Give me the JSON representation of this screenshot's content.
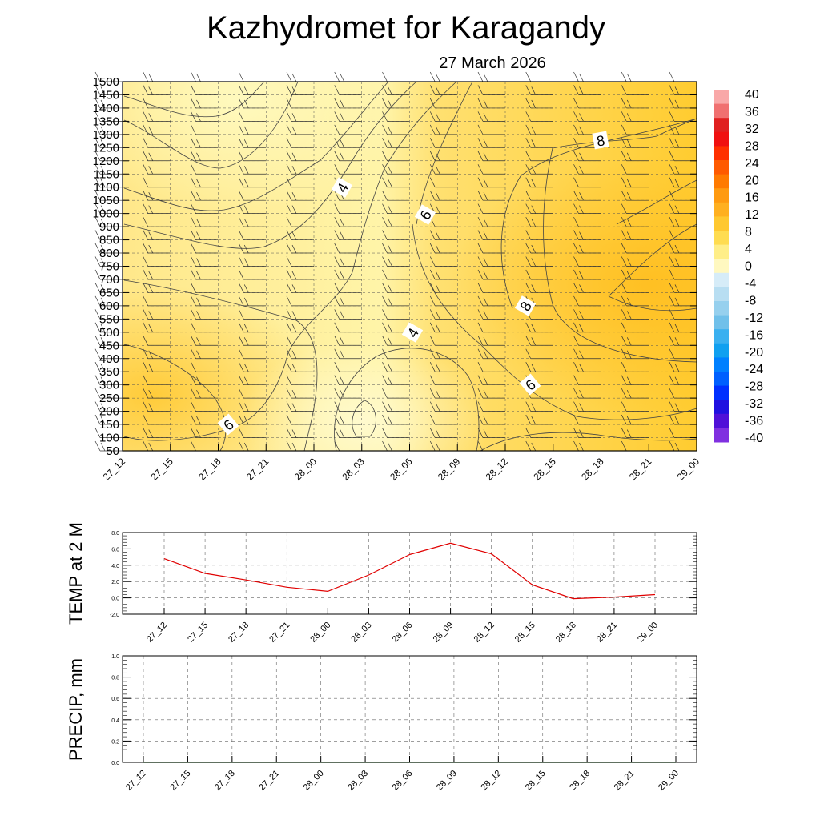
{
  "title": "Kazhydromet  for Karagandy",
  "subtitle": "27 March 2026",
  "time_labels": [
    "27_12",
    "27_15",
    "27_18",
    "27_21",
    "28_00",
    "28_03",
    "28_06",
    "28_09",
    "28_12",
    "28_15",
    "28_18",
    "28_21",
    "29_00"
  ],
  "chart_data": [
    {
      "type": "heatmap",
      "name": "temperature-cross-section",
      "xlabel": "",
      "ylabel": "",
      "x": [
        "27_12",
        "27_15",
        "27_18",
        "27_21",
        "28_00",
        "28_03",
        "28_06",
        "28_09",
        "28_12",
        "28_15",
        "28_18",
        "28_21",
        "29_00"
      ],
      "y_levels": [
        1500,
        1450,
        1400,
        1350,
        1300,
        1250,
        1200,
        1150,
        1100,
        1050,
        1000,
        900,
        850,
        800,
        750,
        700,
        650,
        600,
        550,
        500,
        450,
        400,
        350,
        300,
        250,
        200,
        150,
        100,
        50
      ],
      "contour_labels": [
        {
          "text": "4",
          "time": "28_01",
          "level": 1100
        },
        {
          "text": "6",
          "time": "28_07",
          "level": 1000
        },
        {
          "text": "8",
          "time": "28_18",
          "level": 1300
        },
        {
          "text": "8",
          "time": "28_13",
          "level": 600
        },
        {
          "text": "4",
          "time": "28_06",
          "level": 500
        },
        {
          "text": "6",
          "time": "28_13",
          "level": 300
        },
        {
          "text": "6",
          "time": "27_18",
          "level": 150
        }
      ],
      "colorbar": {
        "labels": [
          "40",
          "36",
          "32",
          "28",
          "24",
          "20",
          "16",
          "12",
          "8",
          "4",
          "0",
          "-4",
          "-8",
          "-12",
          "-16",
          "-20",
          "-24",
          "-28",
          "-32",
          "-36",
          "-40"
        ],
        "range": [
          -40,
          40
        ]
      },
      "wind_barbs": "grid of wind barbs at each time and level"
    },
    {
      "type": "line",
      "name": "temp-2m",
      "ylabel": "TEMP at 2 M",
      "x": [
        "27_12",
        "27_15",
        "27_18",
        "27_21",
        "28_00",
        "28_03",
        "28_06",
        "28_09",
        "28_12",
        "28_15",
        "28_18",
        "28_21",
        "29_00"
      ],
      "values": [
        4.8,
        3.0,
        2.2,
        1.3,
        0.8,
        2.8,
        5.3,
        6.7,
        5.4,
        1.6,
        -0.1,
        0.1,
        0.4
      ],
      "ylim": [
        -2.0,
        8.0
      ],
      "yticks": [
        "8.0",
        "6.0",
        "4.0",
        "2.0",
        "0.0",
        "-2.0"
      ],
      "line_color": "#e00000"
    },
    {
      "type": "line",
      "name": "precip",
      "ylabel": "PRECIP, mm",
      "x": [
        "27_12",
        "27_15",
        "27_18",
        "27_21",
        "28_00",
        "28_03",
        "28_06",
        "28_09",
        "28_12",
        "28_15",
        "28_18",
        "28_21",
        "29_00"
      ],
      "values": [
        0,
        0,
        0,
        0,
        0,
        0,
        0,
        0,
        0,
        0,
        0,
        0,
        0
      ],
      "ylim": [
        0.0,
        1.0
      ],
      "yticks": [
        "1.0",
        "0.8",
        "0.6",
        "0.4",
        "0.2",
        "0.0"
      ],
      "line_color": "#008000"
    }
  ]
}
